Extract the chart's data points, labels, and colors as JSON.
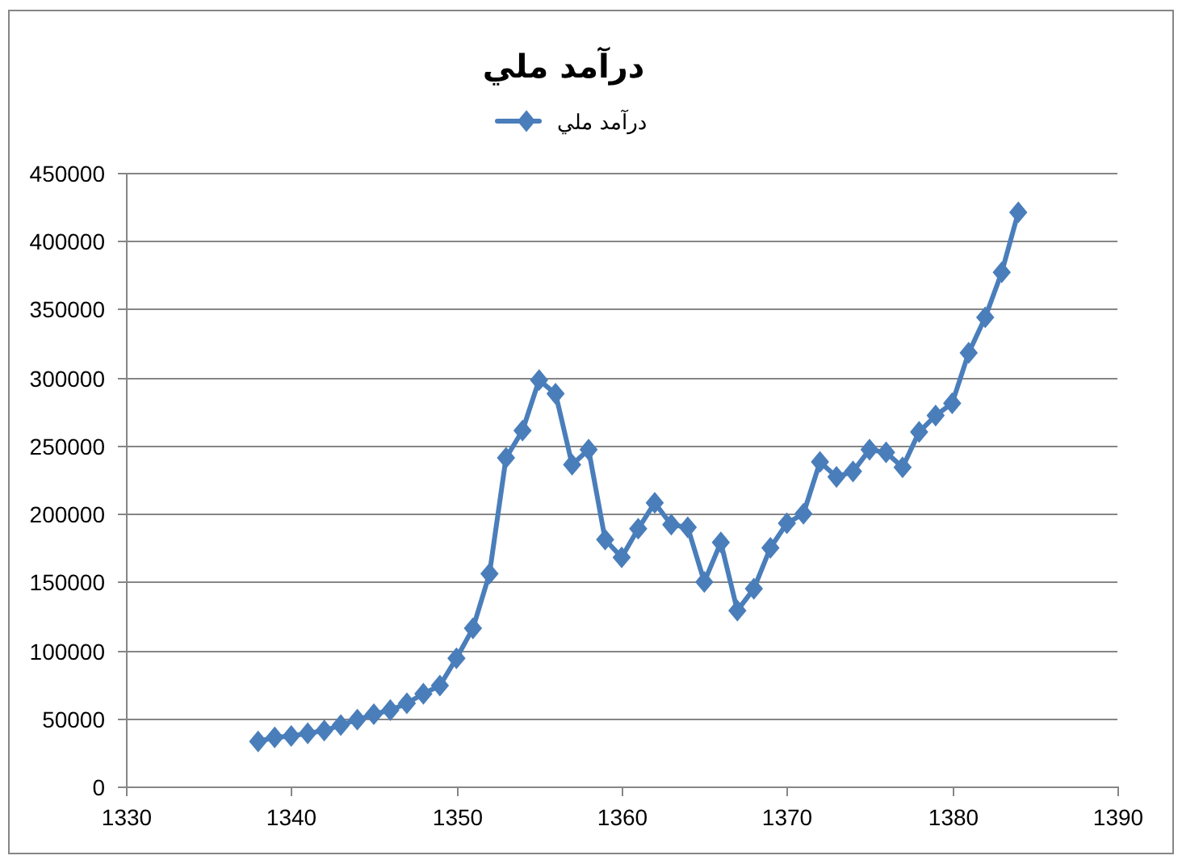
{
  "chart_data": {
    "type": "line",
    "title": "درآمد ملي",
    "x": [
      1338,
      1339,
      1340,
      1341,
      1342,
      1343,
      1344,
      1345,
      1346,
      1347,
      1348,
      1349,
      1350,
      1351,
      1352,
      1353,
      1354,
      1355,
      1356,
      1357,
      1358,
      1359,
      1360,
      1361,
      1362,
      1363,
      1364,
      1365,
      1366,
      1367,
      1368,
      1369,
      1370,
      1371,
      1372,
      1373,
      1374,
      1375,
      1376,
      1377,
      1378,
      1379,
      1380,
      1381,
      1382,
      1383,
      1384
    ],
    "series": [
      {
        "name": "درآمد ملي",
        "color": "#4a7ebb",
        "values": [
          33000,
          36000,
          37000,
          39000,
          41000,
          45000,
          49000,
          53000,
          56000,
          61000,
          68000,
          74000,
          94000,
          116000,
          156000,
          241000,
          261000,
          298000,
          288000,
          236000,
          247000,
          181000,
          168000,
          189000,
          208000,
          192000,
          190000,
          150000,
          179000,
          129000,
          145000,
          175000,
          193000,
          200000,
          238000,
          227000,
          231000,
          247000,
          245000,
          234000,
          260000,
          272000,
          281000,
          318000,
          344000,
          377000,
          421000
        ]
      }
    ],
    "xlim": [
      1330,
      1390
    ],
    "xticks": [
      1330,
      1340,
      1350,
      1360,
      1370,
      1380,
      1390
    ],
    "ylim": [
      0,
      450000
    ],
    "yticks": [
      0,
      50000,
      100000,
      150000,
      200000,
      250000,
      300000,
      350000,
      400000,
      450000
    ],
    "grid": "y",
    "legend": "top",
    "marker": "diamond",
    "line_style": "solid"
  }
}
